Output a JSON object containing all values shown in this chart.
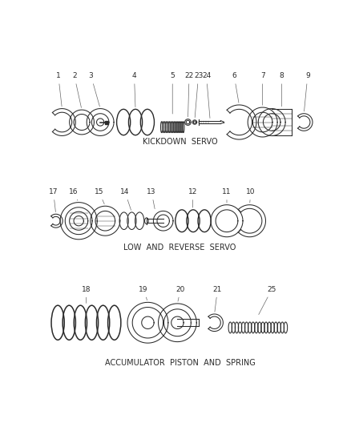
{
  "bg_color": "#ffffff",
  "line_color": "#2a2a2a",
  "title1": "KICKDOWN  SERVO",
  "title2": "LOW  AND  REVERSE  SERVO",
  "title3": "ACCUMULATOR  PISTON  AND  SPRING",
  "title_fontsize": 7,
  "label_fontsize": 6.5
}
